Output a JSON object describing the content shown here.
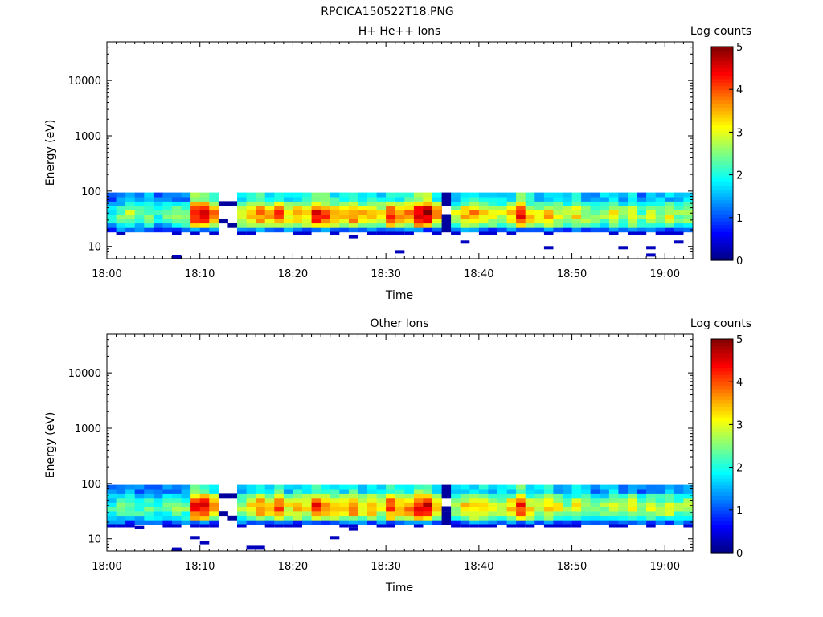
{
  "figure": {
    "title": "RPCICA150522T18.PNG"
  },
  "chart_data": [
    {
      "type": "heatmap",
      "title": "H+ He++ Ions",
      "xlabel": "Time",
      "ylabel": "Energy (eV)",
      "y_scale": "log",
      "ylim": [
        6,
        50000
      ],
      "xlim_minutes_after_1800": [
        0,
        63
      ],
      "x_ticks": [
        "18:00",
        "18:10",
        "18:20",
        "18:30",
        "18:40",
        "18:50",
        "19:00"
      ],
      "y_ticks": [
        "10",
        "100",
        "1000",
        "10000"
      ],
      "colorbar": {
        "label": "Log counts",
        "min": 0,
        "max": 5,
        "ticks": [
          "0",
          "1",
          "2",
          "3",
          "4",
          "5"
        ]
      },
      "energy_bins_eV": [
        20,
        24,
        29,
        35,
        42,
        50,
        60,
        72,
        86
      ],
      "times": [
        "18:00",
        "18:01",
        "18:02",
        "18:03",
        "18:04",
        "18:05",
        "18:06",
        "18:07",
        "18:08",
        "18:09",
        "18:10",
        "18:11",
        "18:12",
        "18:13",
        "18:14",
        "18:15",
        "18:16",
        "18:17",
        "18:18",
        "18:19",
        "18:20",
        "18:21",
        "18:22",
        "18:23",
        "18:24",
        "18:25",
        "18:26",
        "18:27",
        "18:28",
        "18:29",
        "18:30",
        "18:31",
        "18:32",
        "18:33",
        "18:34",
        "18:35",
        "18:36",
        "18:37",
        "18:38",
        "18:39",
        "18:40",
        "18:41",
        "18:42",
        "18:43",
        "18:44",
        "18:45",
        "18:46",
        "18:47",
        "18:48",
        "18:49",
        "18:50",
        "18:51",
        "18:52",
        "18:53",
        "18:54",
        "18:55",
        "18:56",
        "18:57",
        "18:58",
        "18:59",
        "19:00",
        "19:01",
        "19:02"
      ],
      "peak_log_counts": [
        2.0,
        2.4,
        2.8,
        2.2,
        2.5,
        2.0,
        2.3,
        2.6,
        2.5,
        4.4,
        4.6,
        3.8,
        0.3,
        0.3,
        3.0,
        3.3,
        3.8,
        3.5,
        4.0,
        3.2,
        3.6,
        3.4,
        4.4,
        4.0,
        3.6,
        3.4,
        3.9,
        3.3,
        3.6,
        3.1,
        4.2,
        3.5,
        3.8,
        4.6,
        4.8,
        3.6,
        0.6,
        2.8,
        3.4,
        3.6,
        3.3,
        3.2,
        2.9,
        3.5,
        4.3,
        3.3,
        3.0,
        3.4,
        3.1,
        2.7,
        3.2,
        2.8,
        2.5,
        2.7,
        3.0,
        2.6,
        3.2,
        2.4,
        2.9,
        2.7,
        3.0,
        2.6,
        2.8
      ],
      "low_energy_hits": [
        {
          "time": "18:01",
          "energy_eV": 17,
          "log_counts": 0.3
        },
        {
          "time": "18:07",
          "energy_eV": 6.5,
          "log_counts": 0.3
        },
        {
          "time": "18:26",
          "energy_eV": 15,
          "log_counts": 0.3
        },
        {
          "time": "18:31",
          "energy_eV": 8,
          "log_counts": 0.3
        },
        {
          "time": "18:38",
          "energy_eV": 12,
          "log_counts": 0.3
        },
        {
          "time": "18:47",
          "energy_eV": 9.5,
          "log_counts": 0.3
        },
        {
          "time": "18:55",
          "energy_eV": 9.5,
          "log_counts": 0.3
        },
        {
          "time": "18:58",
          "energy_eV": 9.5,
          "log_counts": 0.3
        },
        {
          "time": "18:58",
          "energy_eV": 7,
          "log_counts": 0.3
        },
        {
          "time": "19:01",
          "energy_eV": 12,
          "log_counts": 0.3
        }
      ]
    },
    {
      "type": "heatmap",
      "title": "Other Ions",
      "xlabel": "Time",
      "ylabel": "Energy (eV)",
      "y_scale": "log",
      "ylim": [
        6,
        50000
      ],
      "xlim_minutes_after_1800": [
        0,
        63
      ],
      "x_ticks": [
        "18:00",
        "18:10",
        "18:20",
        "18:30",
        "18:40",
        "18:50",
        "19:00"
      ],
      "y_ticks": [
        "10",
        "100",
        "1000",
        "10000"
      ],
      "colorbar": {
        "label": "Log counts",
        "min": 0,
        "max": 5,
        "ticks": [
          "0",
          "1",
          "2",
          "3",
          "4",
          "5"
        ]
      },
      "energy_bins_eV": [
        20,
        24,
        29,
        35,
        42,
        50,
        60,
        72,
        86
      ],
      "times": [
        "18:00",
        "18:01",
        "18:02",
        "18:03",
        "18:04",
        "18:05",
        "18:06",
        "18:07",
        "18:08",
        "18:09",
        "18:10",
        "18:11",
        "18:12",
        "18:13",
        "18:14",
        "18:15",
        "18:16",
        "18:17",
        "18:18",
        "18:19",
        "18:20",
        "18:21",
        "18:22",
        "18:23",
        "18:24",
        "18:25",
        "18:26",
        "18:27",
        "18:28",
        "18:29",
        "18:30",
        "18:31",
        "18:32",
        "18:33",
        "18:34",
        "18:35",
        "18:36",
        "18:37",
        "18:38",
        "18:39",
        "18:40",
        "18:41",
        "18:42",
        "18:43",
        "18:44",
        "18:45",
        "18:46",
        "18:47",
        "18:48",
        "18:49",
        "18:50",
        "18:51",
        "18:52",
        "18:53",
        "18:54",
        "18:55",
        "18:56",
        "18:57",
        "18:58",
        "18:59",
        "19:00",
        "19:01",
        "19:02"
      ],
      "peak_log_counts": [
        2.0,
        2.3,
        2.6,
        2.2,
        2.4,
        2.0,
        2.2,
        2.5,
        2.4,
        4.3,
        4.5,
        3.6,
        0.5,
        0.4,
        2.8,
        3.2,
        3.7,
        3.4,
        3.9,
        3.1,
        3.5,
        3.3,
        4.3,
        3.9,
        3.5,
        3.3,
        3.8,
        3.2,
        3.5,
        3.0,
        4.1,
        3.4,
        3.7,
        4.5,
        4.7,
        3.5,
        0.8,
        2.7,
        3.3,
        3.5,
        3.2,
        3.1,
        2.8,
        3.4,
        4.2,
        3.2,
        2.9,
        3.3,
        3.0,
        2.6,
        3.1,
        2.7,
        2.4,
        2.6,
        2.9,
        2.5,
        3.1,
        2.3,
        2.8,
        2.6,
        2.9,
        2.5,
        2.7
      ],
      "low_energy_hits": [
        {
          "time": "18:03",
          "energy_eV": 16,
          "log_counts": 0.3
        },
        {
          "time": "18:07",
          "energy_eV": 6.5,
          "log_counts": 0.3
        },
        {
          "time": "18:09",
          "energy_eV": 10.5,
          "log_counts": 0.3
        },
        {
          "time": "18:10",
          "energy_eV": 8.5,
          "log_counts": 0.3
        },
        {
          "time": "18:15",
          "energy_eV": 7,
          "log_counts": 0.3
        },
        {
          "time": "18:16",
          "energy_eV": 7,
          "log_counts": 0.3
        },
        {
          "time": "18:24",
          "energy_eV": 10.5,
          "log_counts": 0.3
        },
        {
          "time": "18:26",
          "energy_eV": 15,
          "log_counts": 0.3
        }
      ]
    }
  ]
}
